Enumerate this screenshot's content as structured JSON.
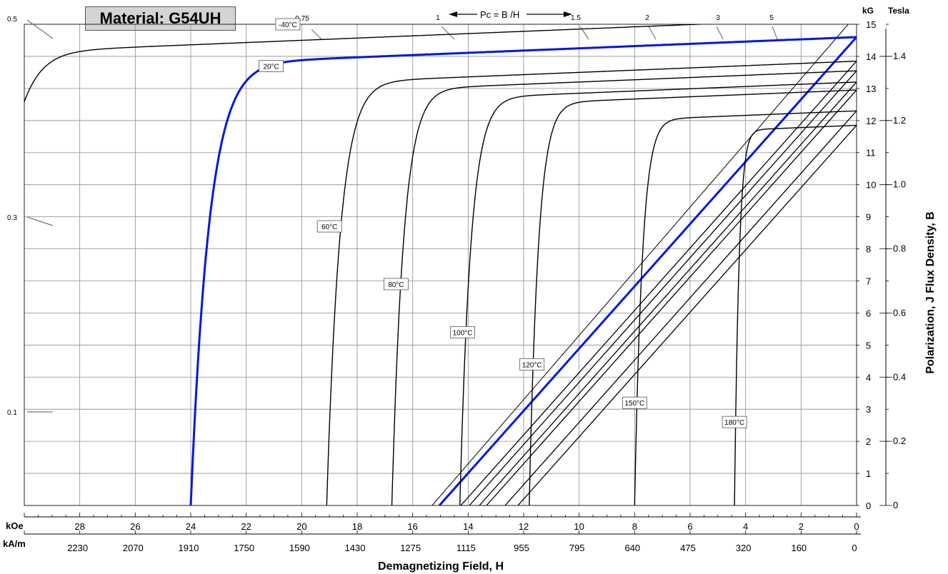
{
  "chart_data": {
    "type": "line",
    "title": "Material: G54UH",
    "xlabel": "Demagnetizing Field, H",
    "ylabel": "Polarization,   J        Flux Density,   B",
    "x_units": [
      "kOe",
      "kA/m"
    ],
    "y_units": [
      "kG",
      "Tesla"
    ],
    "xlim": [
      30,
      0
    ],
    "ylim": [
      0,
      15
    ],
    "grid": true,
    "x_ticks_koe": [
      "28",
      "26",
      "24",
      "22",
      "20",
      "18",
      "16",
      "14",
      "12",
      "10",
      "8",
      "6",
      "4",
      "2",
      "0"
    ],
    "x_ticks_kam": [
      "2230",
      "2070",
      "1910",
      "1750",
      "1590",
      "1430",
      "1275",
      "1115",
      "955",
      "795",
      "640",
      "475",
      "320",
      "160",
      "0"
    ],
    "y_ticks_kg": [
      "0",
      "1",
      "2",
      "3",
      "4",
      "5",
      "6",
      "7",
      "8",
      "9",
      "10",
      "11",
      "12",
      "13",
      "14",
      "15"
    ],
    "y_ticks_tesla": [
      "0",
      "0.2",
      "0.4",
      "0.6",
      "0.8",
      "1.0",
      "1.2",
      "1.4"
    ],
    "pc_header": "Pc = B /H",
    "pc_top_labels": [
      "0.75",
      "1",
      "1.5",
      "2",
      "3",
      "5"
    ],
    "pc_left_labels": [
      "0.5",
      "0.3",
      "0.1"
    ],
    "series": [
      {
        "name": "-40°C",
        "color": "#000000",
        "width": 1.4,
        "br": 15.2,
        "hc": 31.5,
        "knee_j": 13.2,
        "sharp": 2.5,
        "label_pos": [
          20.5,
          15
        ]
      },
      {
        "name": "20°C",
        "color": "#0018e0",
        "width": 3,
        "br": 14.6,
        "hc": 24.0,
        "knee_j": 10.0,
        "sharp": 2.0,
        "label_pos": [
          21.1,
          13.7
        ]
      },
      {
        "name": "60°C",
        "color": "#000000",
        "width": 1.4,
        "br": 13.85,
        "hc": 19.1,
        "knee_j": 9.0,
        "sharp": 2.2,
        "label_pos": [
          19.0,
          8.7
        ]
      },
      {
        "name": "80°C",
        "color": "#000000",
        "width": 1.4,
        "br": 13.55,
        "hc": 16.75,
        "knee_j": 9.0,
        "sharp": 2.2,
        "label_pos": [
          16.6,
          6.9
        ]
      },
      {
        "name": "100°C",
        "color": "#000000",
        "width": 1.4,
        "br": 13.2,
        "hc": 14.3,
        "knee_j": 9.0,
        "sharp": 2.0,
        "label_pos": [
          14.2,
          5.4
        ]
      },
      {
        "name": "120°C",
        "color": "#000000",
        "width": 1.4,
        "br": 12.95,
        "hc": 11.8,
        "knee_j": 8.8,
        "sharp": 2.0,
        "label_pos": [
          11.7,
          4.4
        ]
      },
      {
        "name": "150°C",
        "color": "#000000",
        "width": 1.4,
        "br": 12.3,
        "hc": 8.0,
        "knee_j": 8.6,
        "sharp": 1.6,
        "label_pos": [
          8.0,
          3.2
        ]
      },
      {
        "name": "180°C",
        "color": "#000000",
        "width": 1.4,
        "br": 11.85,
        "hc": 4.4,
        "knee_j": 8.4,
        "sharp": 1.5,
        "label_pos": [
          4.4,
          2.6
        ]
      }
    ]
  }
}
